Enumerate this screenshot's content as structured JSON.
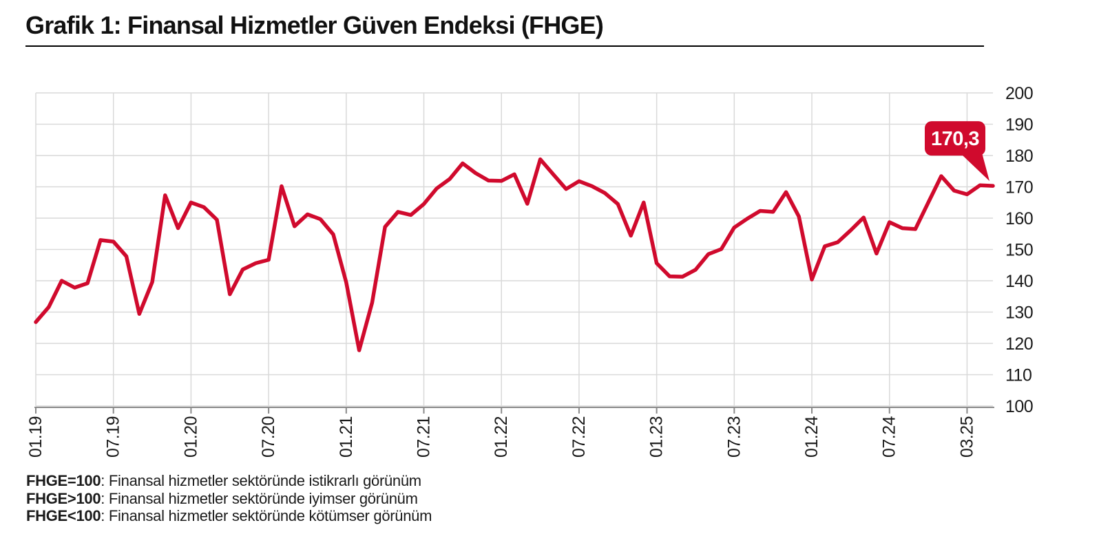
{
  "title": "Grafik 1: Finansal Hizmetler Güven Endeksi (FHGE)",
  "callout": {
    "label": "170,3"
  },
  "footer": {
    "items": [
      {
        "term": "FHGE=100",
        "desc": ": Finansal hizmetler sektöründe istikrarlı görünüm"
      },
      {
        "term": "FHGE>100",
        "desc": ": Finansal hizmetler sektöründe iyimser görünüm"
      },
      {
        "term": "FHGE<100",
        "desc": ": Finansal hizmetler sektöründe kötümser görünüm"
      }
    ]
  },
  "colors": {
    "line": "#d00a2d",
    "callout_bg": "#d00a2d",
    "callout_text": "#ffffff",
    "grid": "#d9d9d9",
    "axis": "#8a8a8a",
    "text": "#1a1a1a"
  },
  "chart_data": {
    "type": "line",
    "title": "Finansal Hizmetler Güven Endeksi (FHGE)",
    "grid": true,
    "legend_position": "none",
    "ylim": [
      100,
      200
    ],
    "ytick_step": 10,
    "x_start": "01.19",
    "x_end": "03.25",
    "x_frequency": "monthly",
    "x_tick_labels": [
      "01.19",
      "07.19",
      "01.20",
      "07.20",
      "01.21",
      "07.21",
      "01.22",
      "07.22",
      "01.23",
      "07.23",
      "01.24",
      "07.24",
      "03.25"
    ],
    "x_tick_month_indexes": [
      0,
      6,
      12,
      18,
      24,
      30,
      36,
      42,
      48,
      54,
      60,
      66,
      72
    ],
    "last_value_label": "170,3",
    "series": [
      {
        "name": "FHGE",
        "values": [
          126.8,
          131.6,
          140.0,
          137.8,
          139.2,
          153.0,
          152.5,
          147.8,
          129.4,
          139.6,
          167.3,
          156.8,
          165.0,
          163.5,
          159.5,
          135.7,
          143.6,
          145.6,
          146.7,
          170.2,
          157.4,
          161.2,
          159.7,
          154.8,
          139.5,
          117.8,
          133.0,
          157.2,
          162.0,
          161.0,
          164.5,
          169.5,
          172.5,
          177.5,
          174.4,
          172.0,
          171.9,
          174.0,
          164.6,
          178.8,
          174.0,
          169.3,
          171.8,
          170.2,
          168.0,
          164.5,
          154.4,
          165.0,
          145.6,
          141.4,
          141.3,
          143.5,
          148.5,
          150.1,
          157.0,
          159.8,
          162.3,
          162.0,
          168.3,
          160.5,
          140.4,
          151.0,
          152.3,
          156.1,
          160.2,
          148.7,
          158.7,
          156.8,
          156.5,
          165.0,
          173.4,
          168.8,
          167.6,
          170.5,
          170.3
        ]
      }
    ]
  }
}
